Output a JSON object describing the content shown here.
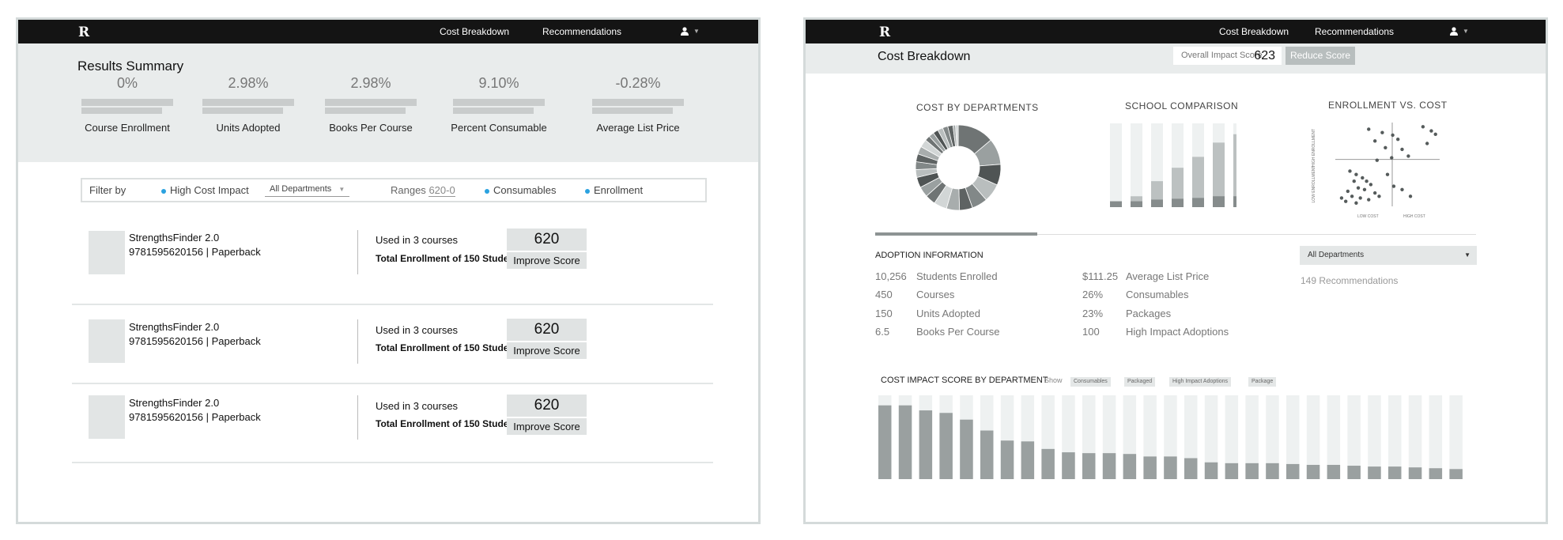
{
  "left_screen": {
    "nav": {
      "logo": "R",
      "links": [
        "Cost Breakdown",
        "Recommendations"
      ]
    },
    "summary": {
      "title": "Results Summary",
      "metrics": [
        {
          "value": "0%",
          "label": "Course Enrollment"
        },
        {
          "value": "2.98%",
          "label": "Units Adopted"
        },
        {
          "value": "2.98%",
          "label": "Books Per Course"
        },
        {
          "value": "9.10%",
          "label": "Percent Consumable"
        },
        {
          "value": "-0.28%",
          "label": "Average List Price"
        }
      ]
    },
    "filter": {
      "label": "Filter by",
      "high_cost": "High Cost Impact",
      "departments": "All Departments",
      "ranges_label": "Ranges",
      "ranges_value": "620-0",
      "consumables": "Consumables",
      "enrollment": "Enrollment"
    },
    "books": [
      {
        "title": "StrengthsFinder 2.0",
        "isbn": "9781595620156  | Paperback",
        "used": "Used in 3 courses",
        "total": "Total Enrollment of 150 Students",
        "score": "620",
        "button": "Improve Score"
      },
      {
        "title": "StrengthsFinder 2.0",
        "isbn": "9781595620156  | Paperback",
        "used": "Used in 3 courses",
        "total": "Total Enrollment of 150 Students",
        "score": "620",
        "button": "Improve Score"
      },
      {
        "title": "StrengthsFinder 2.0",
        "isbn": "9781595620156  | Paperback",
        "used": "Used in 3 courses",
        "total": "Total Enrollment of 150 Students",
        "score": "620",
        "button": "Improve Score"
      }
    ]
  },
  "right_screen": {
    "nav": {
      "logo": "R",
      "links": [
        "Cost Breakdown",
        "Recommendations"
      ]
    },
    "header": {
      "title": "Cost Breakdown",
      "impact_label": "Overall Impact Score",
      "impact_value": "623",
      "reduce_button": "Reduce Score"
    },
    "charts": {
      "departments_title": "COST BY DEPARTMENTS",
      "school_title": "SCHOOL COMPARISON",
      "enrollment_title": "ENROLLMENT VS. COST",
      "high_enrollment": "HIGH ENROLLMENT",
      "low_enrollment": "LOW ENROLLMENT",
      "low_cost": "LOW COST",
      "high_cost": "HIGH COST"
    },
    "adoption": {
      "title": "ADOPTION INFORMATION",
      "left": [
        {
          "value": "10,256",
          "label": "Students Enrolled"
        },
        {
          "value": "450",
          "label": "Courses"
        },
        {
          "value": "150",
          "label": "Units Adopted"
        },
        {
          "value": "6.5",
          "label": "Books Per Course"
        }
      ],
      "right": [
        {
          "value": "$111.25",
          "label": "Average List Price"
        },
        {
          "value": "26%",
          "label": "Consumables"
        },
        {
          "value": "23%",
          "label": "Packages"
        },
        {
          "value": "100",
          "label": "High Impact Adoptions"
        }
      ],
      "department_select": "All Departments",
      "recommendations": "149 Recommendations"
    },
    "impact_by_department": {
      "title": "COST IMPACT SCORE BY DEPARTMENT",
      "show_label": "Show",
      "chips": [
        "Consumables",
        "Packaged",
        "High Impact Adoptions",
        "Package"
      ]
    },
    "colors": {
      "nav": "#141414",
      "band": "#e9ecec",
      "accent_dot": "#2aa2e0",
      "bar_dark": "#9aa0a0",
      "bar_light": "#eef1f1"
    }
  },
  "chart_data": [
    {
      "type": "pie",
      "title": "COST BY DEPARTMENTS",
      "values": [
        14,
        10,
        8,
        7,
        6,
        5,
        5,
        5,
        4,
        4,
        4,
        3,
        3,
        3,
        3,
        3,
        2,
        2,
        2,
        2,
        2,
        2,
        1,
        1
      ]
    },
    {
      "type": "bar",
      "title": "SCHOOL COMPARISON",
      "series": [
        {
          "values": [
            7,
            7,
            9,
            10,
            11,
            13,
            13
          ]
        },
        {
          "values": [
            7,
            13,
            31,
            47,
            60,
            77,
            87
          ]
        }
      ],
      "ylim": [
        0,
        100
      ]
    },
    {
      "type": "scatter",
      "title": "ENROLLMENT VS. COST",
      "xlabel": "LOW COST / HIGH COST",
      "ylabel": "LOW ENROLLMENT / HIGH ENROLLMENT",
      "points": [
        [
          32,
          92
        ],
        [
          45,
          88
        ],
        [
          55,
          85
        ],
        [
          38,
          78
        ],
        [
          60,
          80
        ],
        [
          48,
          70
        ],
        [
          64,
          68
        ],
        [
          70,
          60
        ],
        [
          54,
          58
        ],
        [
          40,
          55
        ],
        [
          84,
          95
        ],
        [
          92,
          90
        ],
        [
          96,
          86
        ],
        [
          88,
          75
        ],
        [
          14,
          42
        ],
        [
          20,
          38
        ],
        [
          26,
          34
        ],
        [
          18,
          30
        ],
        [
          30,
          30
        ],
        [
          34,
          26
        ],
        [
          22,
          22
        ],
        [
          28,
          20
        ],
        [
          12,
          18
        ],
        [
          38,
          16
        ],
        [
          16,
          12
        ],
        [
          24,
          10
        ],
        [
          32,
          8
        ],
        [
          10,
          6
        ],
        [
          42,
          12
        ],
        [
          20,
          4
        ],
        [
          50,
          38
        ],
        [
          56,
          24
        ],
        [
          64,
          20
        ],
        [
          72,
          12
        ],
        [
          6,
          10
        ]
      ]
    },
    {
      "type": "bar",
      "title": "COST IMPACT SCORE BY DEPARTMENT",
      "values": [
        88,
        88,
        82,
        79,
        71,
        58,
        46,
        45,
        36,
        32,
        31,
        31,
        30,
        27,
        27,
        25,
        20,
        19,
        19,
        19,
        18,
        17,
        17,
        16,
        15,
        15,
        14,
        13,
        12
      ],
      "ylim": [
        0,
        100
      ]
    }
  ]
}
